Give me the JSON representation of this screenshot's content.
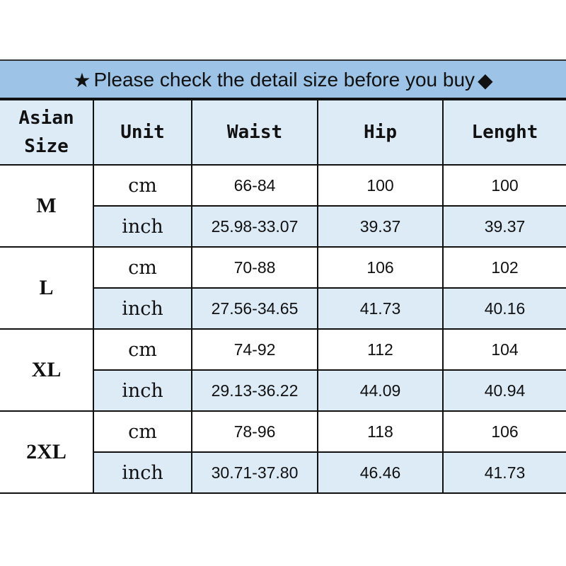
{
  "title": {
    "star": "★",
    "text": "Please check the detail size before you buy",
    "diamond": "◆"
  },
  "headers": [
    "Asian Size",
    "Unit",
    "Waist",
    "Hip",
    "Lenght"
  ],
  "rows": [
    {
      "size": "M",
      "cm": {
        "unit": "cm",
        "waist": "66-84",
        "hip": "100",
        "length": "100"
      },
      "inch": {
        "unit": "inch",
        "waist": "25.98-33.07",
        "hip": "39.37",
        "length": "39.37"
      }
    },
    {
      "size": "L",
      "cm": {
        "unit": "cm",
        "waist": "70-88",
        "hip": "106",
        "length": "102"
      },
      "inch": {
        "unit": "inch",
        "waist": "27.56-34.65",
        "hip": "41.73",
        "length": "40.16"
      }
    },
    {
      "size": "XL",
      "cm": {
        "unit": "cm",
        "waist": "74-92",
        "hip": "112",
        "length": "104"
      },
      "inch": {
        "unit": "inch",
        "waist": "29.13-36.22",
        "hip": "44.09",
        "length": "40.94"
      }
    },
    {
      "size": "2XL",
      "cm": {
        "unit": "cm",
        "waist": "78-96",
        "hip": "118",
        "length": "106"
      },
      "inch": {
        "unit": "inch",
        "waist": "30.71-37.80",
        "hip": "46.46",
        "length": "41.73"
      }
    }
  ],
  "colors": {
    "title_bg": "#9dc3e6",
    "header_bg": "#ddebf7",
    "border": "#111111"
  }
}
